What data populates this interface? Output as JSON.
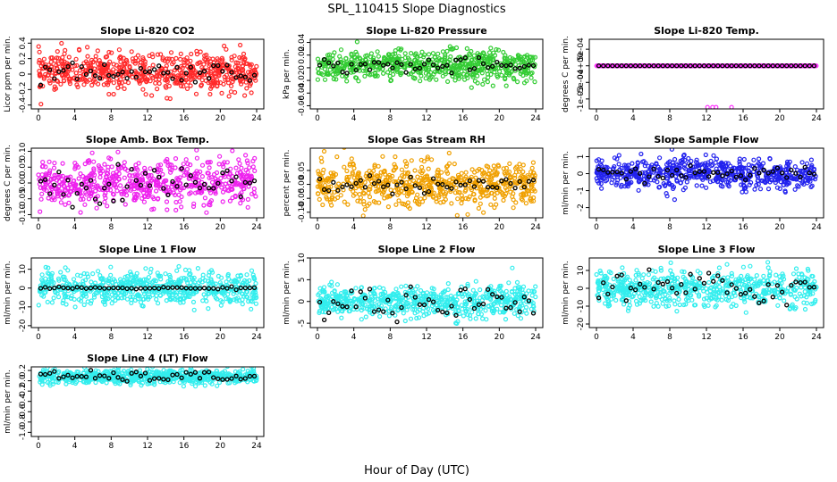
{
  "figure": {
    "title": "SPL_110415  Slope Diagnostics",
    "xlabel": "Hour of Day (UTC)"
  },
  "chart_data": [
    {
      "type": "scatter",
      "title": "Slope Li-820 CO2",
      "ylabel": "Licor ppm per min.",
      "color": "#ff2a2a",
      "xlim": [
        0,
        24
      ],
      "ylim": [
        -0.45,
        0.45
      ],
      "yticks": [
        -0.4,
        -0.2,
        0.0,
        0.2,
        0.4
      ],
      "xticks": [
        0,
        4,
        8,
        12,
        16,
        20,
        24
      ],
      "center": 0.03,
      "spread": 0.12,
      "mean_spread": 0.06,
      "sparse_black": true,
      "series": [
        {
          "name": "",
          "values_ref": "center ± spread (dense noise, ~700 pts)"
        }
      ],
      "hourly_mean_points": "black, near 0.05"
    },
    {
      "type": "scatter",
      "title": "Slope Li-820 Pressure",
      "ylabel": "kPa per min.",
      "color": "#33cc33",
      "xlim": [
        0,
        24
      ],
      "ylim": [
        -0.065,
        0.045
      ],
      "yticks": [
        -0.06,
        -0.04,
        -0.02,
        0.0,
        0.02,
        0.04
      ],
      "xticks": [
        0,
        4,
        8,
        12,
        16,
        20,
        24
      ],
      "center": 0.003,
      "spread": 0.012,
      "mean_spread": 0.006,
      "sparse_black": true
    },
    {
      "type": "scatter",
      "title": "Slope Li-820 Temp.",
      "ylabel": "degrees C per min.",
      "color": "#ff33ff",
      "xlim": [
        0,
        24
      ],
      "ylim": [
        -0.0013,
        0.0008
      ],
      "yticks": [
        -0.001,
        -0.0005,
        0.0,
        0.0005
      ],
      "yticklabels": [
        "-1e-03",
        "-5e-04",
        "0e+00",
        "5e-04"
      ],
      "xticks": [
        0,
        4,
        8,
        12,
        16,
        20,
        24
      ],
      "center": 0.0,
      "spread": 0.0,
      "mean_spread": 0.0,
      "quantized": true,
      "sparse_black": false
    },
    {
      "type": "scatter",
      "title": "Slope Amb. Box Temp.",
      "ylabel": "degrees C per min.",
      "color": "#ee22ee",
      "xlim": [
        0,
        24
      ],
      "ylim": [
        -0.11,
        0.11
      ],
      "yticks": [
        -0.1,
        -0.05,
        0.0,
        0.05,
        0.1
      ],
      "yticklabels": [
        "-0.10",
        "-0.05",
        "0.00",
        "0.05",
        "0.10"
      ],
      "xticks": [
        0,
        4,
        8,
        12,
        16,
        20,
        24
      ],
      "center": 0.0,
      "spread": 0.035,
      "mean_spread": 0.03,
      "sparse_black": true
    },
    {
      "type": "scatter",
      "title": "Slope Gas Stream RH",
      "ylabel": "percent per min.",
      "color": "#f0a000",
      "xlim": [
        0,
        24
      ],
      "ylim": [
        -0.12,
        0.13
      ],
      "yticks": [
        -0.1,
        -0.05,
        0.0,
        0.05
      ],
      "yticklabels": [
        "-0.10",
        "-0.05",
        "0.00",
        "0.05"
      ],
      "xticks": [
        0,
        4,
        8,
        12,
        16,
        20,
        24
      ],
      "center": 0.0,
      "spread": 0.04,
      "mean_spread": 0.015,
      "sparse_black": true
    },
    {
      "type": "scatter",
      "title": "Slope Sample Flow",
      "ylabel": "ml/min per min.",
      "color": "#2222ee",
      "xlim": [
        0,
        24
      ],
      "ylim": [
        -2.6,
        1.5
      ],
      "yticks": [
        -2,
        -1,
        0,
        1
      ],
      "xticks": [
        0,
        4,
        8,
        12,
        16,
        20,
        24
      ],
      "center": 0.0,
      "spread": 0.45,
      "mean_spread": 0.2,
      "sparse_black": false
    },
    {
      "type": "scatter",
      "title": "Slope Line 1 Flow",
      "ylabel": "ml/min per min.",
      "color": "#33eeee",
      "xlim": [
        0,
        24
      ],
      "ylim": [
        -21,
        16
      ],
      "yticks": [
        -20,
        -10,
        0,
        10
      ],
      "xticks": [
        0,
        4,
        8,
        12,
        16,
        20,
        24
      ],
      "center": 0.0,
      "spread": 4.0,
      "mean_spread": 0.3,
      "sparse_black": false
    },
    {
      "type": "scatter",
      "title": "Slope Line 2 Flow",
      "ylabel": "ml/min per min.",
      "color": "#33eeee",
      "xlim": [
        0,
        24
      ],
      "ylim": [
        -6,
        10
      ],
      "yticks": [
        -5,
        0,
        5,
        10
      ],
      "xticks": [
        0,
        4,
        8,
        12,
        16,
        20,
        24
      ],
      "center": 0.0,
      "spread": 1.8,
      "mean_spread": 2.0,
      "sparse_black": true
    },
    {
      "type": "scatter",
      "title": "Slope Line 3 Flow",
      "ylabel": "ml/min per min.",
      "color": "#33eeee",
      "xlim": [
        0,
        24
      ],
      "ylim": [
        -22,
        17
      ],
      "yticks": [
        -20,
        -10,
        0,
        10
      ],
      "xticks": [
        0,
        4,
        8,
        12,
        16,
        20,
        24
      ],
      "center": 0.0,
      "spread": 5.0,
      "mean_spread": 5.0,
      "sparse_black": true
    },
    {
      "type": "scatter",
      "title": "Slope Line 4 (LT) Flow",
      "ylabel": "ml/min per min.",
      "color": "#33eeee",
      "xlim": [
        0,
        24
      ],
      "ylim": [
        -1.08,
        0.27
      ],
      "yticks": [
        -1.0,
        -0.8,
        -0.6,
        -0.4,
        -0.2,
        0.0,
        0.2
      ],
      "yticklabels": [
        "-1.0",
        "-0.8",
        "-0.6",
        "-0.4",
        "-0.2",
        "0.0",
        "0.2"
      ],
      "xticks": [
        0,
        4,
        8,
        12,
        16,
        20,
        24
      ],
      "center": 0.08,
      "spread": 0.07,
      "mean_spread": 0.05,
      "sparse_black": false
    }
  ]
}
